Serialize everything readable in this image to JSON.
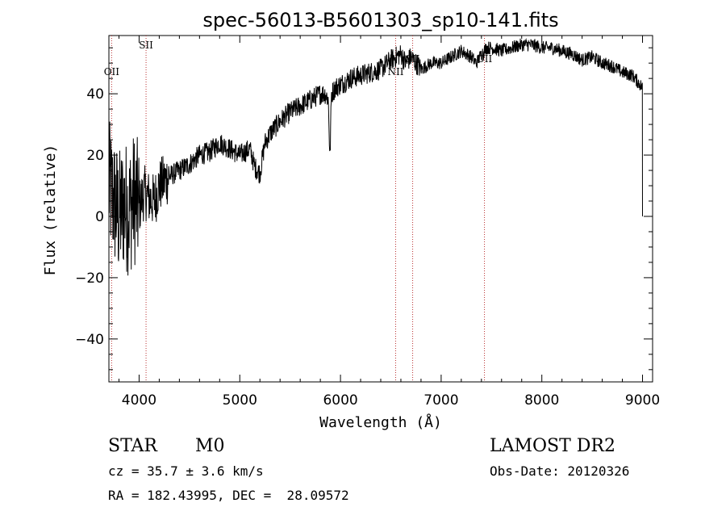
{
  "title": "spec-56013-B5601303_sp10-141.fits",
  "chart_data": {
    "type": "line",
    "title": "spec-56013-B5601303_sp10-141.fits",
    "xlabel": "Wavelength (Å)",
    "ylabel": "Flux (relative)",
    "xlim": [
      3700,
      9100
    ],
    "ylim": [
      -54,
      59
    ],
    "xticks": [
      4000,
      5000,
      6000,
      7000,
      8000,
      9000
    ],
    "yticks": [
      -40,
      -20,
      0,
      20,
      40
    ],
    "grid": false,
    "series": [
      {
        "x": [
          3700,
          3750,
          3800,
          3850,
          3900,
          3950,
          4000,
          4050,
          4100,
          4150,
          4200,
          4300,
          4400,
          4500,
          4600,
          4700,
          4800,
          4900,
          5000,
          5100,
          5150,
          5200,
          5250,
          5300,
          5400,
          5500,
          5600,
          5700,
          5800,
          5850,
          5880,
          5895,
          5910,
          5950,
          6000,
          6100,
          6200,
          6300,
          6400,
          6500,
          6550,
          6600,
          6650,
          6700,
          6750,
          6800,
          6900,
          7000,
          7100,
          7150,
          7200,
          7300,
          7350,
          7400,
          7450,
          7500,
          7600,
          7700,
          7800,
          7900,
          8000,
          8100,
          8200,
          8300,
          8400,
          8500,
          8600,
          8700,
          8800,
          8900,
          8950,
          9000
        ],
        "y": [
          10,
          5,
          0,
          4,
          2,
          6,
          3,
          8,
          6,
          5,
          10,
          13,
          15,
          17,
          20,
          21,
          24,
          22,
          20,
          22,
          16,
          14,
          24,
          27,
          31,
          34,
          36,
          38,
          40,
          40,
          38,
          18,
          40,
          42,
          43,
          45,
          46,
          47,
          48,
          51,
          52,
          53,
          50,
          52,
          50,
          48,
          50,
          50,
          52,
          53,
          54,
          52,
          50,
          53,
          55,
          55,
          54,
          55,
          56,
          56,
          55,
          55,
          54,
          53,
          51,
          52,
          50,
          49,
          47,
          46,
          44,
          42
        ]
      }
    ],
    "lines": [
      {
        "label": "OII",
        "x": 3727
      },
      {
        "label": "SII",
        "x": 4069
      },
      {
        "label": "NII",
        "x": 6548
      },
      {
        "label": "SII",
        "x": 6717
      },
      {
        "label": "OII",
        "x": 7430
      }
    ],
    "annotations": [
      "STAR",
      "M0",
      "LAMOST DR2",
      "Obs-Date: 20120326",
      "cz = 35.7 ± 3.6 km/s",
      "RA = 182.43995, DEC =  28.09572"
    ]
  },
  "info": {
    "object_class": "STAR",
    "subclass": "M0",
    "redshift": "cz = 35.7 ± 3.6 km/s",
    "coords": "RA = 182.43995, DEC =  28.09572",
    "survey": "LAMOST DR2",
    "obs_date": "Obs-Date: 20120326"
  }
}
